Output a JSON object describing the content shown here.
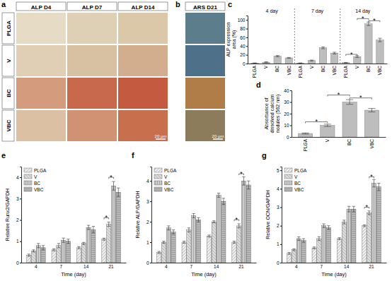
{
  "figure": {
    "panel_letters": [
      "a",
      "b",
      "c",
      "d",
      "e",
      "f",
      "g"
    ],
    "images": {
      "columns": [
        "ALP D4",
        "ALP D7",
        "ALP D14"
      ],
      "extra_column": "ARS D21",
      "rows": [
        "PLGA",
        "V",
        "BC",
        "VBC"
      ],
      "scale_bar": "20 µm"
    }
  },
  "chart_data": [
    {
      "type": "bar",
      "groups": [
        "4 day",
        "7 day",
        "14 day"
      ],
      "categories": [
        "PLGA",
        "V",
        "BC",
        "VBC",
        "PLGA",
        "V",
        "BC",
        "VBC",
        "PLGA",
        "V",
        "BC",
        "VBC"
      ],
      "values": [
        1,
        3,
        17,
        13,
        1,
        7,
        36,
        24,
        2,
        16,
        91,
        54
      ],
      "errors": [
        0.5,
        1,
        1.5,
        1,
        0.5,
        1,
        2,
        2,
        0.5,
        2,
        4,
        4
      ],
      "color": "#bdbdbd",
      "ylabel": "ALP expression area (%)",
      "ylim": [
        0,
        110
      ],
      "yticks": [
        0,
        20,
        40,
        60,
        80,
        100
      ],
      "annotations": [
        {
          "text": "*",
          "between": [
            8,
            9
          ],
          "y": 21
        },
        {
          "text": "*",
          "between": [
            9,
            10
          ],
          "y": 103
        },
        {
          "text": "*",
          "between": [
            10,
            11
          ],
          "y": 98
        }
      ]
    },
    {
      "type": "bar",
      "categories": [
        "PLGA",
        "V",
        "BC",
        "VBC"
      ],
      "values": [
        3,
        10,
        30,
        23
      ],
      "errors": [
        0.5,
        1,
        2,
        1.5
      ],
      "color": "#bdbdbd",
      "ylabel": "Absorbance of dissolved calcium nodules (562 nm)",
      "ylim": [
        0,
        40
      ],
      "yticks": [
        0,
        10,
        20,
        30,
        40
      ],
      "annotations": [
        {
          "text": "*",
          "between": [
            0,
            1
          ],
          "y": 13
        },
        {
          "text": "*",
          "between": [
            1,
            2
          ],
          "y": 36
        },
        {
          "text": "*",
          "between": [
            2,
            3
          ],
          "y": 33.5
        }
      ]
    },
    {
      "type": "bar",
      "categories": [
        "4",
        "7",
        "14",
        "21"
      ],
      "xlabel": "Time (day)",
      "ylabel": "Relative Runx2/GAPDH",
      "ylim": [
        0,
        4.5
      ],
      "yticks": [
        0,
        1,
        2,
        3,
        4
      ],
      "legend": "upper left",
      "series": [
        {
          "name": "PLGA",
          "color": "#f2f2f2",
          "values": [
            0.35,
            0.6,
            0.7,
            1.1
          ],
          "errors": [
            0.05,
            0.05,
            0.05,
            0.05
          ]
        },
        {
          "name": "V",
          "color": "#e0e0e0",
          "values": [
            0.55,
            0.8,
            0.9,
            1.8
          ],
          "errors": [
            0.05,
            0.1,
            0.05,
            0.1
          ]
        },
        {
          "name": "BC",
          "color": "#cccccc",
          "values": [
            0.8,
            1.05,
            1.65,
            3.6
          ],
          "errors": [
            0.1,
            0.1,
            0.1,
            0.2
          ]
        },
        {
          "name": "VBC",
          "color": "#b8b8b8",
          "values": [
            0.7,
            1.0,
            1.55,
            3.3
          ],
          "errors": [
            0.1,
            0.1,
            0.15,
            0.2
          ]
        }
      ],
      "annotations": [
        {
          "text": "*",
          "category": 3,
          "between": [
            0,
            1
          ],
          "y": 2.1
        },
        {
          "text": "*",
          "category": 3,
          "between": [
            1,
            2
          ],
          "y": 4.0
        }
      ]
    },
    {
      "type": "bar",
      "categories": [
        "4",
        "7",
        "14",
        "21"
      ],
      "xlabel": "Time (day)",
      "ylabel": "Relative ALP/GAPDH",
      "ylim": [
        0,
        4.7
      ],
      "yticks": [
        0,
        1,
        2,
        3,
        4
      ],
      "legend": "upper left",
      "series": [
        {
          "name": "PLGA",
          "color": "#f2f2f2",
          "values": [
            0.5,
            1.0,
            1.3,
            1.0
          ],
          "errors": [
            0.05,
            0.05,
            0.05,
            0.05
          ]
        },
        {
          "name": "V",
          "color": "#e0e0e0",
          "values": [
            1.0,
            1.6,
            2.0,
            1.8
          ],
          "errors": [
            0.05,
            0.1,
            0.05,
            0.1
          ]
        },
        {
          "name": "BC",
          "color": "#cccccc",
          "values": [
            1.7,
            2.3,
            3.3,
            4.0
          ],
          "errors": [
            0.1,
            0.1,
            0.1,
            0.2
          ]
        },
        {
          "name": "VBC",
          "color": "#b8b8b8",
          "values": [
            1.5,
            2.1,
            3.0,
            3.8
          ],
          "errors": [
            0.1,
            0.1,
            0.15,
            0.2
          ]
        }
      ],
      "annotations": [
        {
          "text": "*",
          "category": 3,
          "between": [
            0,
            1
          ],
          "y": 2.1
        },
        {
          "text": "*",
          "category": 3,
          "between": [
            1,
            2
          ],
          "y": 4.35
        }
      ]
    },
    {
      "type": "bar",
      "categories": [
        "4",
        "7",
        "14",
        "21"
      ],
      "xlabel": "Time (day)",
      "ylabel": "Relative OCN/GAPDH",
      "ylim": [
        0,
        5.2
      ],
      "yticks": [
        0,
        1,
        2,
        3,
        4,
        5
      ],
      "legend": "upper left",
      "series": [
        {
          "name": "PLGA",
          "color": "#f2f2f2",
          "values": [
            0.5,
            0.8,
            1.3,
            2.0
          ],
          "errors": [
            0.05,
            0.05,
            0.05,
            0.05
          ]
        },
        {
          "name": "V",
          "color": "#e0e0e0",
          "values": [
            0.7,
            1.3,
            2.2,
            2.7
          ],
          "errors": [
            0.05,
            0.1,
            0.1,
            0.1
          ]
        },
        {
          "name": "BC",
          "color": "#cccccc",
          "values": [
            1.3,
            2.0,
            2.9,
            4.3
          ],
          "errors": [
            0.1,
            0.1,
            0.15,
            0.2
          ]
        },
        {
          "name": "VBC",
          "color": "#b8b8b8",
          "values": [
            1.2,
            1.9,
            2.9,
            4.1
          ],
          "errors": [
            0.1,
            0.1,
            0.15,
            0.2
          ]
        }
      ],
      "annotations": [
        {
          "text": "*",
          "category": 3,
          "between": [
            0,
            1
          ],
          "y": 3.0
        },
        {
          "text": "*",
          "category": 3,
          "between": [
            1,
            2
          ],
          "y": 4.65
        }
      ]
    }
  ]
}
